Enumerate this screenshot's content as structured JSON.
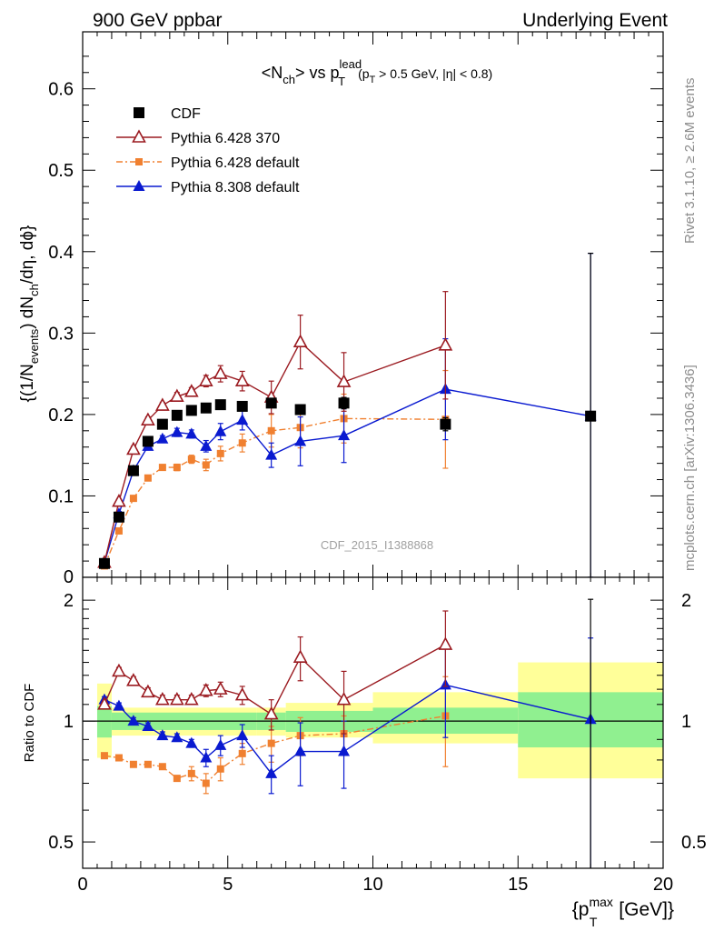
{
  "header": {
    "left": "900 GeV ppbar",
    "right": "Underlying Event"
  },
  "side_labels": {
    "rivet": "Rivet 3.1.10, ≥ 2.6M events",
    "mcplots": "mcplots.cern.ch [arXiv:1306.3436]"
  },
  "watermark": "CDF_2015_I1388868",
  "main_title": {
    "main": "<N",
    "sub1": "ch",
    "mid": "> vs p",
    "sup": "lead",
    "sub2": "T",
    "cond_a": "(p",
    "cond_sub": "T",
    "cond_b": " > 0.5 GeV, |η| < 0.8)"
  },
  "y_label_main": {
    "a": "{(1/N",
    "sub1": "events",
    "b": ") dN",
    "sub2": "ch",
    "c": "/dη, dϕ}"
  },
  "y_label_ratio": "Ratio to CDF",
  "x_label": {
    "a": "{p",
    "sup": "max",
    "sub": "T",
    "b": " [GeV]}"
  },
  "colors": {
    "cdf": "#000000",
    "p6_370": "#9b1b21",
    "p6_default": "#f08030",
    "p8": "#0a1ad0",
    "band_green": "#90f090",
    "band_yellow": "#ffff99"
  },
  "chart_data": [
    {
      "type": "scatter",
      "panel": "main",
      "xlim": [
        0,
        20
      ],
      "ylim": [
        0,
        0.67
      ],
      "x_ticks": [
        0,
        5,
        10,
        15,
        20
      ],
      "y_ticks": [
        0.1,
        0.2,
        0.3,
        0.4,
        0.5,
        0.6
      ],
      "y_tick_labels": [
        "0.1",
        "0.2",
        "0.3",
        "0.4",
        "0.5",
        "0.6"
      ],
      "y_zero_label": "0",
      "legend_position": "top-left",
      "series": [
        {
          "name": "CDF",
          "marker": "square",
          "x": [
            0.75,
            1.25,
            1.75,
            2.25,
            2.75,
            3.25,
            3.75,
            4.25,
            4.75,
            5.5,
            6.5,
            7.5,
            9.0,
            12.5,
            17.5
          ],
          "y": [
            0.017,
            0.074,
            0.131,
            0.167,
            0.188,
            0.199,
            0.205,
            0.208,
            0.212,
            0.21,
            0.214,
            0.206,
            0.214,
            0.188,
            0.198
          ],
          "err": [
            0.002,
            0.004,
            0.004,
            0.004,
            0.004,
            0.004,
            0.004,
            0.004,
            0.004,
            0.004,
            0.005,
            0.006,
            0.007,
            0.008,
            0.2
          ]
        },
        {
          "name": "Pythia 6.428 370",
          "marker": "open-triangle",
          "x": [
            0.75,
            1.25,
            1.75,
            2.25,
            2.75,
            3.25,
            3.75,
            4.25,
            4.75,
            5.5,
            6.5,
            7.5,
            9.0,
            12.5
          ],
          "y": [
            0.018,
            0.093,
            0.157,
            0.193,
            0.211,
            0.222,
            0.228,
            0.241,
            0.25,
            0.241,
            0.221,
            0.289,
            0.24,
            0.285
          ],
          "err": [
            0.002,
            0.003,
            0.004,
            0.004,
            0.004,
            0.005,
            0.005,
            0.007,
            0.01,
            0.012,
            0.02,
            0.033,
            0.036,
            0.066
          ]
        },
        {
          "name": "Pythia 6.428 default",
          "marker": "small-square",
          "x": [
            0.75,
            1.25,
            1.75,
            2.25,
            2.75,
            3.25,
            3.75,
            4.25,
            4.75,
            5.5,
            6.5,
            7.5,
            9.0,
            12.5
          ],
          "y": [
            0.014,
            0.057,
            0.097,
            0.122,
            0.135,
            0.135,
            0.145,
            0.138,
            0.152,
            0.165,
            0.18,
            0.184,
            0.195,
            0.194
          ],
          "err": [
            0.001,
            0.002,
            0.003,
            0.003,
            0.003,
            0.004,
            0.005,
            0.007,
            0.009,
            0.011,
            0.02,
            0.025,
            0.03,
            0.06
          ]
        },
        {
          "name": "Pythia 8.308 default",
          "marker": "triangle",
          "x": [
            0.75,
            1.25,
            1.75,
            2.25,
            2.75,
            3.25,
            3.75,
            4.25,
            4.75,
            5.5,
            6.5,
            7.5,
            9.0,
            12.5,
            17.5
          ],
          "y": [
            0.018,
            0.078,
            0.131,
            0.161,
            0.17,
            0.178,
            0.176,
            0.161,
            0.179,
            0.193,
            0.15,
            0.167,
            0.174,
            0.231,
            0.198
          ],
          "err": [
            0.002,
            0.003,
            0.004,
            0.004,
            0.004,
            0.005,
            0.005,
            0.007,
            0.01,
            0.012,
            0.015,
            0.03,
            0.033,
            0.062,
            0.2
          ]
        }
      ]
    },
    {
      "type": "scatter",
      "panel": "ratio",
      "xlim": [
        0,
        20
      ],
      "ylim": [
        0.43,
        2.28
      ],
      "y_scale": "log",
      "x_ticks": [
        0,
        5,
        10,
        15,
        20
      ],
      "x_tick_labels": [
        "0",
        "5",
        "10",
        "15",
        "20"
      ],
      "y_ticks": [
        0.5,
        1,
        2
      ],
      "y_tick_labels": [
        "0.5",
        "1",
        "2"
      ],
      "reference_line": 1,
      "bands": [
        {
          "x0": 0.5,
          "x1": 1.0,
          "g": [
            0.91,
            1.09
          ],
          "y": [
            0.81,
            1.24
          ]
        },
        {
          "x0": 1.0,
          "x1": 6.0,
          "g": [
            0.95,
            1.05
          ],
          "y": [
            0.92,
            1.08
          ]
        },
        {
          "x0": 6.0,
          "x1": 7.0,
          "g": [
            0.95,
            1.05
          ],
          "y": [
            0.92,
            1.08
          ]
        },
        {
          "x0": 7.0,
          "x1": 10.0,
          "g": [
            0.94,
            1.06
          ],
          "y": [
            0.91,
            1.11
          ]
        },
        {
          "x0": 10.0,
          "x1": 15.0,
          "g": [
            0.93,
            1.08
          ],
          "y": [
            0.88,
            1.18
          ]
        },
        {
          "x0": 15.0,
          "x1": 20.0,
          "g": [
            0.86,
            1.18
          ],
          "y": [
            0.72,
            1.4
          ]
        }
      ],
      "series": [
        {
          "name": "CDF",
          "marker": "none",
          "x": [
            17.5
          ],
          "y": [
            1.01
          ],
          "err_hi": [
            2.01
          ],
          "err_lo": [
            0.36
          ]
        },
        {
          "name": "Pythia 6.428 370",
          "marker": "open-triangle",
          "x": [
            0.75,
            1.25,
            1.75,
            2.25,
            2.75,
            3.25,
            3.75,
            4.25,
            4.75,
            5.5,
            6.5,
            7.5,
            9.0,
            12.5
          ],
          "y": [
            1.1,
            1.33,
            1.26,
            1.18,
            1.13,
            1.13,
            1.13,
            1.19,
            1.2,
            1.16,
            1.04,
            1.44,
            1.13,
            1.55
          ],
          "err": [
            0.02,
            0.03,
            0.03,
            0.03,
            0.03,
            0.03,
            0.03,
            0.04,
            0.05,
            0.06,
            0.09,
            0.18,
            0.2,
            0.33
          ]
        },
        {
          "name": "Pythia 6.428 default",
          "marker": "small-square",
          "x": [
            0.75,
            1.25,
            1.75,
            2.25,
            2.75,
            3.25,
            3.75,
            4.25,
            4.75,
            5.5,
            6.5,
            7.5,
            9.0,
            12.5
          ],
          "y": [
            0.82,
            0.81,
            0.78,
            0.78,
            0.77,
            0.72,
            0.74,
            0.7,
            0.76,
            0.83,
            0.88,
            0.92,
            0.93,
            1.03
          ],
          "err": [
            0.01,
            0.01,
            0.01,
            0.01,
            0.01,
            0.01,
            0.03,
            0.04,
            0.05,
            0.05,
            0.09,
            0.1,
            0.1,
            0.26
          ]
        },
        {
          "name": "Pythia 8.308 default",
          "marker": "triangle",
          "x": [
            0.75,
            1.25,
            1.75,
            2.25,
            2.75,
            3.25,
            3.75,
            4.25,
            4.75,
            5.5,
            6.5,
            7.5,
            9.0,
            12.5,
            17.5
          ],
          "y": [
            1.13,
            1.09,
            1.0,
            0.97,
            0.92,
            0.91,
            0.88,
            0.81,
            0.87,
            0.92,
            0.74,
            0.84,
            0.84,
            1.23,
            1.01
          ],
          "err": [
            0.02,
            0.02,
            0.02,
            0.02,
            0.02,
            0.02,
            0.02,
            0.04,
            0.05,
            0.06,
            0.08,
            0.15,
            0.16,
            0.32,
            0.6
          ]
        }
      ]
    }
  ]
}
